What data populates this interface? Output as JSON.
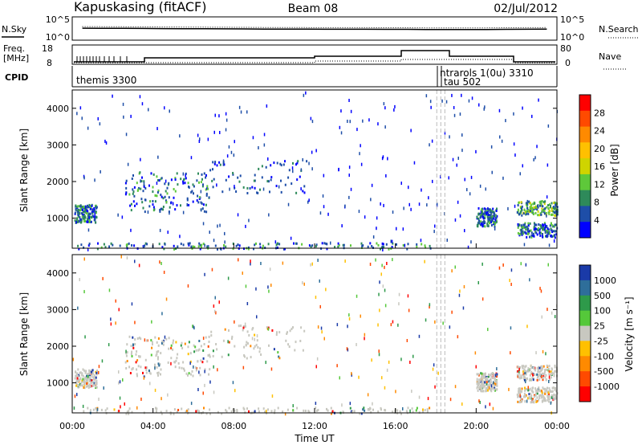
{
  "header": {
    "radar": "Kapuskasing (fitACF)",
    "beam": "Beam 08",
    "date": "02/Jul/2012"
  },
  "noise_panel": {
    "left_label": "N.Sky",
    "left_ticks": [
      "10^5",
      "10^0"
    ],
    "right_ticks": [
      "10^5",
      "10^0"
    ],
    "right_label": "N.Search"
  },
  "freq_panel": {
    "left_label_1": "Freq.",
    "left_label_2": "[MHz]",
    "left_ticks": [
      "18",
      "8"
    ],
    "right_ticks": [
      "80",
      "0"
    ],
    "right_label": "Nave"
  },
  "cpid_panel": {
    "label": "CPID",
    "entries": [
      "themis 3300",
      "ntrarols 1(0u) 3310",
      "tau 502"
    ]
  },
  "power_panel": {
    "ylabel": "Slant Range [km]",
    "yticks": [
      "4000",
      "3000",
      "2000",
      "1000"
    ],
    "colorbar_title": "Power [dB]",
    "colorbar_ticks": [
      "28",
      "24",
      "20",
      "16",
      "12",
      "8",
      "4"
    ],
    "colors": [
      "#ff0000",
      "#ff4a00",
      "#ff8a00",
      "#ffc000",
      "#cfd400",
      "#5ec83a",
      "#2e8a5a",
      "#1e4ea8",
      "#0000ff"
    ]
  },
  "velocity_panel": {
    "ylabel": "Slant Range [km]",
    "yticks": [
      "4000",
      "3000",
      "2000",
      "1000"
    ],
    "colorbar_title": "Velocity [m s⁻¹]",
    "colorbar_ticks": [
      "1000",
      "500",
      "100",
      "25",
      "-25",
      "-100",
      "-500",
      "-1000"
    ],
    "colors": [
      "#1a3aa8",
      "#2e6e9a",
      "#2e9a4a",
      "#55c83a",
      "#c8c8c0",
      "#ffc000",
      "#ff8a00",
      "#ff4a00",
      "#ff0000"
    ]
  },
  "x_axis": {
    "ticks": [
      "00:00",
      "04:00",
      "08:00",
      "12:00",
      "16:00",
      "20:00",
      "00:00"
    ],
    "label": "Time UT"
  },
  "chart_data": {
    "type": "heatmap",
    "x_range_hours": [
      0,
      24
    ],
    "y_range_km": [
      180,
      4500
    ],
    "power_clusters": [
      {
        "t0": 0.1,
        "t1": 1.2,
        "r0": 900,
        "r1": 1400,
        "level": "mixed"
      },
      {
        "t0": 2.6,
        "t1": 6.8,
        "r0": 1200,
        "r1": 2300,
        "level": "mixed"
      },
      {
        "t0": 6.8,
        "t1": 11.6,
        "r0": 1700,
        "r1": 2600,
        "level": "weak"
      },
      {
        "t0": 0.2,
        "t1": 18.0,
        "r0": 180,
        "r1": 350,
        "level": "mixed"
      },
      {
        "t0": 20.0,
        "t1": 21.0,
        "r0": 800,
        "r1": 1300,
        "level": "mixed"
      },
      {
        "t0": 22.0,
        "t1": 24.0,
        "r0": 1100,
        "r1": 1500,
        "level": "strong"
      },
      {
        "t0": 22.0,
        "t1": 24.0,
        "r0": 500,
        "r1": 900,
        "level": "mixed"
      }
    ],
    "noise_sky": [
      300,
      290,
      280,
      260,
      240,
      230,
      220,
      210,
      200,
      190,
      180,
      175,
      170,
      170,
      168,
      165,
      160,
      150,
      140,
      140,
      150,
      160,
      170,
      180
    ]
  }
}
